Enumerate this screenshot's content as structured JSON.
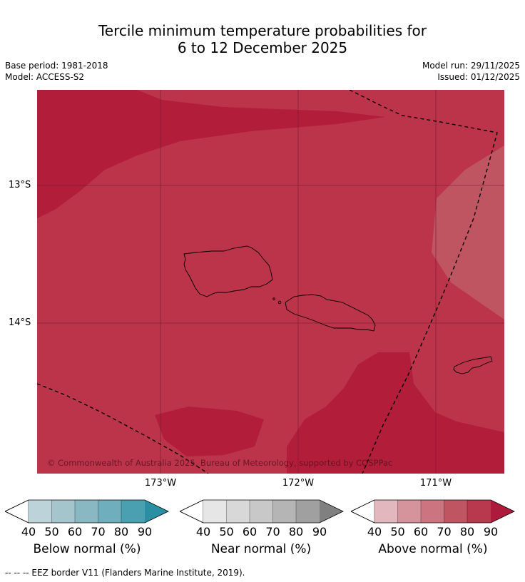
{
  "title_line1": "Tercile minimum temperature probabilities for",
  "title_line2": "6 to 12 December 2025",
  "base_period": "Base period: 1981-2018",
  "model": "Model: ACCESS-S2",
  "model_run": "Model run: 29/11/2025",
  "issued": "Issued: 01/12/2025",
  "copyright": "© Commonwealth of Australia 2025, Bureau of Meteorology, supported by COSPPac",
  "lat_labels": [
    "13°S",
    "14°S"
  ],
  "lon_labels": [
    "173°W",
    "172°W",
    "171°W"
  ],
  "colorbars": [
    {
      "label": "Below normal (%)",
      "ticks": [
        "40",
        "50",
        "60",
        "70",
        "80",
        "90"
      ],
      "colors": [
        "#ffffff",
        "#bdd3da",
        "#a4c5cc",
        "#89b7c2",
        "#6faebd",
        "#4a9fb0",
        "#2b8fa4"
      ]
    },
    {
      "label": "Near normal (%)",
      "ticks": [
        "40",
        "50",
        "60",
        "70",
        "80",
        "90"
      ],
      "colors": [
        "#ffffff",
        "#e6e6e6",
        "#d8d8d8",
        "#c8c8c8",
        "#b5b5b5",
        "#a0a0a0",
        "#808080"
      ]
    },
    {
      "label": "Above normal (%)",
      "ticks": [
        "40",
        "50",
        "60",
        "70",
        "80",
        "90"
      ],
      "colors": [
        "#ffffff",
        "#e2b8be",
        "#d5949c",
        "#cc7580",
        "#c05562",
        "#b8384e",
        "#ad1a3c"
      ]
    }
  ],
  "map_colors": {
    "p70": "#c05562",
    "p80": "#bc3449",
    "p90": "#b21d3a"
  },
  "footer": "-- -- -- EEZ border V11 (Flanders Marine Institute, 2019)."
}
